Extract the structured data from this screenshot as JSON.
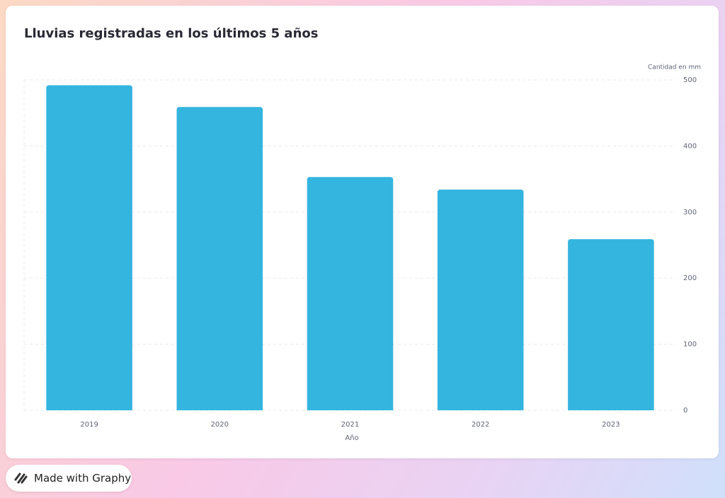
{
  "chart_data": {
    "type": "bar",
    "title": "Lluvias registradas en los últimos 5 años",
    "x_label": "Año",
    "y_label": "Cantidad en mm",
    "categories": [
      "2019",
      "2020",
      "2021",
      "2022",
      "2023"
    ],
    "values": [
      492,
      459,
      353,
      334,
      259
    ],
    "color": "#34b5df",
    "ylim": [
      0,
      500
    ],
    "yticks": [
      0,
      100,
      200,
      300,
      400,
      500
    ],
    "grid": true
  },
  "badge": {
    "text": "Made with Graphy"
  }
}
